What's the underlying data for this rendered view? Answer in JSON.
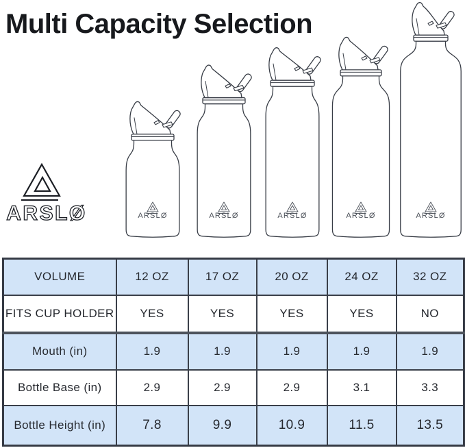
{
  "title": "Multi Capacity Selection",
  "brand": {
    "name": "ARSLØ"
  },
  "colors": {
    "table_row_blue": "#d2e4f8",
    "table_border": "#3a3f49",
    "table_border_heavy": "#4d535c",
    "line_art": "#383d46",
    "text": "#26292f"
  },
  "table": {
    "row_labels": [
      "VOLUME",
      "FITS CUP HOLDER",
      "Mouth (in)",
      "Bottle Base (in)",
      "Bottle Height (in)"
    ]
  },
  "bottles": [
    {
      "volume": "12 OZ",
      "fits_cup_holder": "YES",
      "mouth_in": "1.9",
      "base_in": "2.9",
      "height_in": "7.8"
    },
    {
      "volume": "17 OZ",
      "fits_cup_holder": "YES",
      "mouth_in": "1.9",
      "base_in": "2.9",
      "height_in": "9.9"
    },
    {
      "volume": "20 OZ",
      "fits_cup_holder": "YES",
      "mouth_in": "1.9",
      "base_in": "2.9",
      "height_in": "10.9"
    },
    {
      "volume": "24 OZ",
      "fits_cup_holder": "YES",
      "mouth_in": "1.9",
      "base_in": "3.1",
      "height_in": "11.5"
    },
    {
      "volume": "32 OZ",
      "fits_cup_holder": "NO",
      "mouth_in": "1.9",
      "base_in": "3.3",
      "height_in": "13.5"
    }
  ],
  "chart_data": {
    "type": "table",
    "title": "Multi Capacity Selection",
    "columns": [
      "VOLUME",
      "12 OZ",
      "17 OZ",
      "20 OZ",
      "24 OZ",
      "32 OZ"
    ],
    "rows": [
      [
        "FITS CUP HOLDER",
        "YES",
        "YES",
        "YES",
        "YES",
        "NO"
      ],
      [
        "Mouth (in)",
        "1.9",
        "1.9",
        "1.9",
        "1.9",
        "1.9"
      ],
      [
        "Bottle Base (in)",
        "2.9",
        "2.9",
        "2.9",
        "3.1",
        "3.3"
      ],
      [
        "Bottle Height (in)",
        "7.8",
        "9.9",
        "10.9",
        "11.5",
        "13.5"
      ]
    ]
  }
}
